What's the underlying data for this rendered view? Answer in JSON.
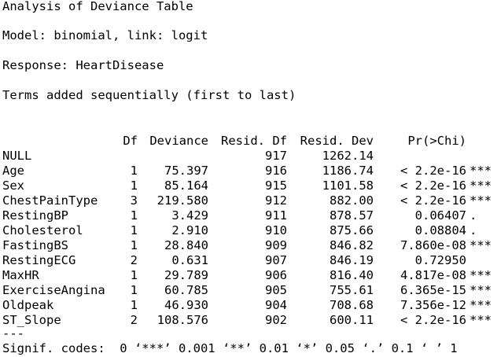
{
  "console": {
    "title_line": "Analysis of Deviance Table",
    "model_line": "Model: binomial, link: logit",
    "response_line": "Response: HeartDisease",
    "terms_line": "Terms added sequentially (first to last)",
    "columns": {
      "df": "Df",
      "deviance": "Deviance",
      "resid_df": "Resid. Df",
      "resid_dev": "Resid. Dev",
      "p": "Pr(>Chi)"
    },
    "rows": [
      {
        "term": "NULL",
        "df": "",
        "deviance": "",
        "resid_df": "917",
        "resid_dev": "1262.14",
        "p": "",
        "sig": ""
      },
      {
        "term": "Age",
        "df": "1",
        "deviance": "75.397",
        "resid_df": "916",
        "resid_dev": "1186.74",
        "p": "< 2.2e-16",
        "sig": "***"
      },
      {
        "term": "Sex",
        "df": "1",
        "deviance": "85.164",
        "resid_df": "915",
        "resid_dev": "1101.58",
        "p": "< 2.2e-16",
        "sig": "***"
      },
      {
        "term": "ChestPainType",
        "df": "3",
        "deviance": "219.580",
        "resid_df": "912",
        "resid_dev": "882.00",
        "p": "< 2.2e-16",
        "sig": "***"
      },
      {
        "term": "RestingBP",
        "df": "1",
        "deviance": "3.429",
        "resid_df": "911",
        "resid_dev": "878.57",
        "p": "0.06407",
        "sig": "."
      },
      {
        "term": "Cholesterol",
        "df": "1",
        "deviance": "2.910",
        "resid_df": "910",
        "resid_dev": "875.66",
        "p": "0.08804",
        "sig": "."
      },
      {
        "term": "FastingBS",
        "df": "1",
        "deviance": "28.840",
        "resid_df": "909",
        "resid_dev": "846.82",
        "p": "7.860e-08",
        "sig": "***"
      },
      {
        "term": "RestingECG",
        "df": "2",
        "deviance": "0.631",
        "resid_df": "907",
        "resid_dev": "846.19",
        "p": "0.72950",
        "sig": ""
      },
      {
        "term": "MaxHR",
        "df": "1",
        "deviance": "29.789",
        "resid_df": "906",
        "resid_dev": "816.40",
        "p": "4.817e-08",
        "sig": "***"
      },
      {
        "term": "ExerciseAngina",
        "df": "1",
        "deviance": "60.785",
        "resid_df": "905",
        "resid_dev": "755.61",
        "p": "6.365e-15",
        "sig": "***"
      },
      {
        "term": "Oldpeak",
        "df": "1",
        "deviance": "46.930",
        "resid_df": "904",
        "resid_dev": "708.68",
        "p": "7.356e-12",
        "sig": "***"
      },
      {
        "term": "ST_Slope",
        "df": "2",
        "deviance": "108.576",
        "resid_df": "902",
        "resid_dev": "600.11",
        "p": "< 2.2e-16",
        "sig": "***"
      }
    ],
    "separator": "---",
    "signif_codes": "Signif. codes:  0 ‘***’ 0.001 ‘**’ 0.01 ‘*’ 0.05 ‘.’ 0.1 ‘ ’ 1"
  }
}
